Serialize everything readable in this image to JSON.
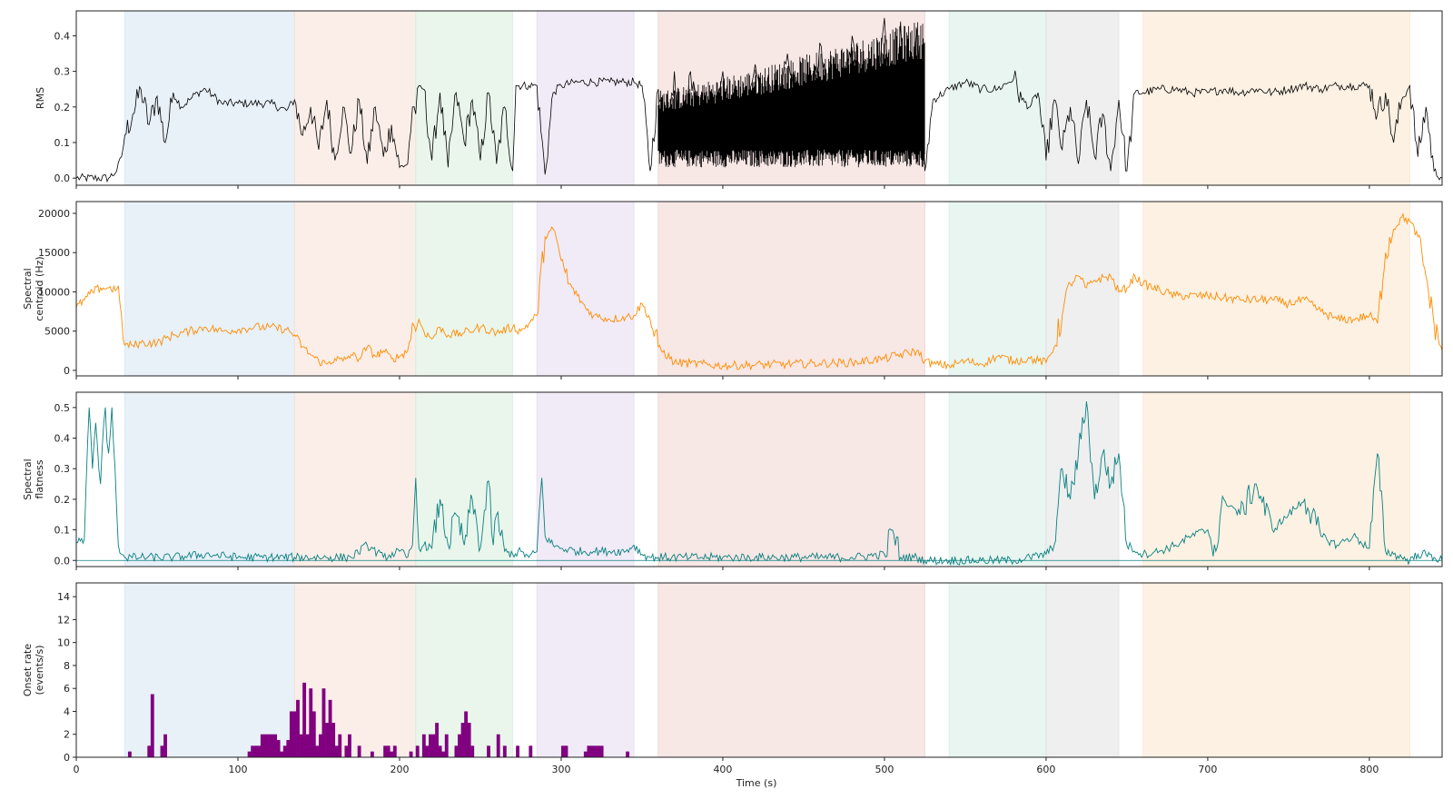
{
  "figure": {
    "title": ""
  },
  "chart_data": {
    "type": "line",
    "shared_x": true,
    "x_label": "Time (s)",
    "x_range": [
      0,
      845
    ],
    "x_ticks": [
      0,
      100,
      200,
      300,
      400,
      500,
      600,
      700,
      800
    ],
    "x_tick_labels": [
      "0",
      "100",
      "200",
      "300",
      "400",
      "500",
      "600",
      "700",
      "800"
    ],
    "segments": [
      {
        "start": 30,
        "end": 135,
        "color": "#d6e4f2"
      },
      {
        "start": 135,
        "end": 210,
        "color": "#f7e0d6"
      },
      {
        "start": 210,
        "end": 270,
        "color": "#d9eedd"
      },
      {
        "start": 285,
        "end": 345,
        "color": "#e6dbf0"
      },
      {
        "start": 360,
        "end": 525,
        "color": "#f0d3d0"
      },
      {
        "start": 540,
        "end": 600,
        "color": "#d5ede5"
      },
      {
        "start": 600,
        "end": 645,
        "color": "#e1e1e1"
      },
      {
        "start": 660,
        "end": 825,
        "color": "#f9e6cc"
      }
    ],
    "panels": [
      {
        "id": "rms",
        "type": "line",
        "ylabel": "RMS",
        "ylim": [
          -0.02,
          0.47
        ],
        "yticks": [
          0.0,
          0.1,
          0.2,
          0.3,
          0.4
        ],
        "ytick_labels": [
          "0.0",
          "0.1",
          "0.2",
          "0.3",
          "0.4"
        ],
        "color": "#000000",
        "x": [
          0,
          20,
          25,
          28,
          30,
          35,
          40,
          45,
          50,
          55,
          60,
          65,
          70,
          75,
          80,
          85,
          90,
          100,
          110,
          120,
          130,
          135,
          140,
          145,
          150,
          155,
          160,
          165,
          170,
          175,
          180,
          185,
          190,
          195,
          200,
          205,
          208,
          210,
          212,
          215,
          220,
          225,
          230,
          235,
          240,
          245,
          250,
          255,
          260,
          265,
          270,
          272,
          280,
          285,
          290,
          295,
          300,
          310,
          320,
          330,
          340,
          345,
          350,
          355,
          360,
          365,
          370,
          375,
          380,
          390,
          400,
          410,
          420,
          430,
          440,
          450,
          460,
          470,
          480,
          490,
          500,
          505,
          510,
          515,
          520,
          525,
          530,
          540,
          550,
          560,
          570,
          580,
          585,
          590,
          595,
          600,
          605,
          610,
          615,
          620,
          625,
          630,
          635,
          640,
          645,
          650,
          655,
          660,
          670,
          680,
          690,
          700,
          710,
          720,
          730,
          740,
          750,
          760,
          770,
          780,
          790,
          800,
          805,
          810,
          815,
          820,
          825,
          830,
          835,
          840,
          845
        ],
        "y": [
          0.0,
          0.0,
          0.02,
          0.06,
          0.12,
          0.18,
          0.25,
          0.15,
          0.23,
          0.1,
          0.24,
          0.2,
          0.22,
          0.24,
          0.25,
          0.23,
          0.21,
          0.21,
          0.21,
          0.21,
          0.19,
          0.22,
          0.12,
          0.2,
          0.08,
          0.22,
          0.05,
          0.2,
          0.07,
          0.22,
          0.04,
          0.2,
          0.06,
          0.15,
          0.03,
          0.04,
          0.2,
          0.18,
          0.26,
          0.25,
          0.05,
          0.24,
          0.03,
          0.24,
          0.1,
          0.22,
          0.05,
          0.24,
          0.04,
          0.2,
          0.02,
          0.26,
          0.26,
          0.26,
          0.01,
          0.24,
          0.26,
          0.27,
          0.27,
          0.27,
          0.27,
          0.27,
          0.26,
          0.02,
          0.25,
          0.08,
          0.3,
          0.05,
          0.3,
          0.06,
          0.3,
          0.05,
          0.32,
          0.04,
          0.35,
          0.05,
          0.38,
          0.06,
          0.4,
          0.08,
          0.45,
          0.05,
          0.44,
          0.06,
          0.42,
          0.02,
          0.22,
          0.25,
          0.27,
          0.25,
          0.25,
          0.28,
          0.22,
          0.2,
          0.24,
          0.05,
          0.22,
          0.08,
          0.2,
          0.04,
          0.22,
          0.06,
          0.18,
          0.02,
          0.22,
          0.02,
          0.24,
          0.24,
          0.25,
          0.25,
          0.24,
          0.24,
          0.25,
          0.24,
          0.25,
          0.24,
          0.25,
          0.26,
          0.25,
          0.26,
          0.26,
          0.26,
          0.18,
          0.24,
          0.1,
          0.22,
          0.26,
          0.06,
          0.2,
          0.02,
          0.0
        ],
        "highlight_x": [
          360,
          525
        ],
        "highlight_y_band": [
          0.03,
          0.45
        ]
      },
      {
        "id": "centroid",
        "type": "line",
        "ylabel": "Spectral centroid (Hz)",
        "ylabel_lines": [
          "Spectral",
          "centroid (Hz)"
        ],
        "ylim": [
          -700,
          21500
        ],
        "yticks": [
          0,
          5000,
          10000,
          15000,
          20000
        ],
        "ytick_labels": [
          "0",
          "5000",
          "10000",
          "15000",
          "20000"
        ],
        "color": "#ff8c00",
        "x": [
          0,
          5,
          10,
          15,
          20,
          25,
          28,
          30,
          35,
          40,
          50,
          60,
          70,
          80,
          90,
          100,
          110,
          120,
          130,
          135,
          140,
          145,
          150,
          155,
          160,
          165,
          170,
          175,
          180,
          185,
          190,
          195,
          200,
          205,
          208,
          210,
          212,
          215,
          220,
          225,
          230,
          240,
          250,
          260,
          270,
          275,
          280,
          285,
          290,
          295,
          298,
          300,
          305,
          310,
          315,
          320,
          330,
          340,
          345,
          350,
          355,
          360,
          370,
          380,
          400,
          420,
          440,
          460,
          480,
          500,
          520,
          525,
          530,
          540,
          550,
          560,
          570,
          580,
          590,
          600,
          605,
          610,
          615,
          620,
          625,
          630,
          640,
          645,
          650,
          655,
          660,
          680,
          700,
          720,
          740,
          750,
          760,
          770,
          780,
          790,
          800,
          805,
          810,
          815,
          820,
          825,
          830,
          835,
          840,
          845
        ],
        "y": [
          8000,
          9000,
          10000,
          10500,
          10500,
          10300,
          7000,
          3200,
          3200,
          3500,
          3500,
          4500,
          5000,
          5500,
          5000,
          5200,
          5500,
          5500,
          5200,
          4500,
          3000,
          2000,
          1200,
          800,
          1500,
          1200,
          2000,
          1500,
          3000,
          1800,
          2500,
          1500,
          1800,
          2500,
          6000,
          5000,
          6500,
          5000,
          4000,
          5500,
          4500,
          4800,
          5500,
          4800,
          5500,
          5000,
          6000,
          7000,
          17000,
          18000,
          16000,
          14000,
          11000,
          9500,
          8000,
          7000,
          6500,
          6800,
          7000,
          8500,
          6500,
          3000,
          1000,
          900,
          600,
          700,
          800,
          900,
          1000,
          1500,
          2500,
          1200,
          800,
          600,
          1200,
          800,
          1800,
          1200,
          1500,
          1000,
          3000,
          7000,
          11000,
          12000,
          10500,
          11500,
          12000,
          10000,
          10500,
          12000,
          11000,
          9500,
          9500,
          9000,
          9000,
          8500,
          9000,
          7500,
          6500,
          6500,
          7000,
          6000,
          15000,
          18000,
          19500,
          19000,
          17000,
          12000,
          6000,
          2500
        ]
      },
      {
        "id": "flatness",
        "type": "line",
        "ylabel": "Spectral flatness",
        "ylabel_lines": [
          "Spectral",
          "flatness"
        ],
        "ylim": [
          -0.02,
          0.55
        ],
        "yticks": [
          0.0,
          0.1,
          0.2,
          0.3,
          0.4,
          0.5
        ],
        "ytick_labels": [
          "0.0",
          "0.1",
          "0.2",
          "0.3",
          "0.4",
          "0.5"
        ],
        "color": "#0a8080",
        "x": [
          0,
          5,
          8,
          10,
          12,
          15,
          18,
          20,
          22,
          24,
          26,
          28,
          30,
          40,
          60,
          80,
          100,
          120,
          135,
          150,
          170,
          180,
          190,
          200,
          205,
          208,
          210,
          212,
          215,
          220,
          225,
          230,
          235,
          240,
          245,
          250,
          255,
          258,
          260,
          265,
          270,
          275,
          280,
          285,
          288,
          290,
          295,
          300,
          310,
          320,
          330,
          340,
          345,
          350,
          355,
          360,
          380,
          400,
          420,
          440,
          460,
          480,
          500,
          505,
          510,
          520,
          525,
          540,
          560,
          580,
          590,
          600,
          605,
          610,
          615,
          620,
          625,
          630,
          635,
          640,
          645,
          650,
          660,
          670,
          680,
          690,
          700,
          705,
          710,
          720,
          730,
          740,
          750,
          760,
          770,
          780,
          790,
          800,
          805,
          810,
          815,
          820,
          825,
          830,
          835,
          840,
          845
        ],
        "y": [
          0.06,
          0.07,
          0.5,
          0.3,
          0.45,
          0.25,
          0.5,
          0.35,
          0.5,
          0.3,
          0.05,
          0.02,
          0.01,
          0.01,
          0.01,
          0.02,
          0.01,
          0.01,
          0.01,
          0.01,
          0.01,
          0.05,
          0.01,
          0.03,
          0.01,
          0.05,
          0.27,
          0.04,
          0.05,
          0.04,
          0.2,
          0.05,
          0.15,
          0.05,
          0.2,
          0.04,
          0.26,
          0.05,
          0.15,
          0.03,
          0.02,
          0.03,
          0.01,
          0.03,
          0.27,
          0.08,
          0.05,
          0.04,
          0.03,
          0.03,
          0.03,
          0.03,
          0.05,
          0.02,
          0.01,
          0.01,
          0.01,
          0.01,
          0.01,
          0.01,
          0.01,
          0.01,
          0.02,
          0.1,
          0.01,
          0.01,
          0.0,
          0.0,
          0.0,
          0.0,
          0.01,
          0.02,
          0.05,
          0.3,
          0.2,
          0.35,
          0.52,
          0.2,
          0.35,
          0.25,
          0.35,
          0.05,
          0.02,
          0.03,
          0.05,
          0.08,
          0.1,
          0.03,
          0.2,
          0.15,
          0.25,
          0.1,
          0.15,
          0.2,
          0.08,
          0.05,
          0.08,
          0.04,
          0.35,
          0.03,
          0.02,
          0.01,
          0.0,
          0.02,
          0.02,
          0.01,
          0.0
        ],
        "extra_segments": [
          {
            "x0": 0,
            "x1": 845,
            "y": 0.0
          }
        ]
      },
      {
        "id": "onset",
        "type": "bar",
        "ylabel": "Onset rate (events/s)",
        "ylabel_lines": [
          "Onset rate",
          "(events/s)"
        ],
        "ylim": [
          0,
          15.2
        ],
        "yticks": [
          0,
          2,
          4,
          6,
          8,
          10,
          12,
          14
        ],
        "ytick_labels": [
          "0",
          "2",
          "4",
          "6",
          "8",
          "10",
          "12",
          "14"
        ],
        "color": "#800080",
        "bin_width": 2,
        "bin_start": 0,
        "values": [
          0,
          0,
          0,
          0,
          0,
          0,
          0,
          0,
          0,
          0,
          0,
          0,
          0,
          0,
          0,
          0,
          0.5,
          0,
          0,
          0,
          0,
          0,
          1,
          5.5,
          0,
          0,
          1,
          2,
          0,
          0,
          0,
          0,
          0,
          0,
          0,
          0,
          0,
          0,
          0,
          0,
          0,
          0,
          0,
          0,
          0,
          0,
          0,
          0,
          0,
          0,
          0,
          0,
          0,
          0.5,
          1,
          1,
          1,
          2,
          2,
          2,
          2,
          2,
          1.5,
          0.5,
          1,
          1.5,
          4,
          4,
          5,
          2,
          6.5,
          2,
          6,
          4,
          1,
          2,
          6,
          3,
          5,
          3,
          1,
          2,
          0,
          1,
          2,
          0,
          0,
          1,
          0,
          0,
          0,
          0.5,
          0,
          0,
          0,
          1,
          1,
          0.5,
          1,
          0,
          0,
          0,
          0,
          0.5,
          0,
          1,
          0,
          2,
          1,
          2,
          2,
          3,
          1,
          0.5,
          2,
          0,
          0,
          1,
          2,
          3,
          4,
          3,
          1,
          0,
          0,
          0,
          0,
          1,
          0,
          0,
          2,
          0,
          1,
          0,
          0,
          0,
          1,
          0,
          0,
          0,
          1,
          0,
          0,
          0,
          0,
          0,
          0,
          0,
          0,
          0,
          1,
          1,
          0,
          0,
          0,
          0,
          0,
          0.5,
          1,
          1,
          1,
          1,
          1,
          0,
          0,
          0,
          0,
          0,
          0,
          0,
          0.5
        ],
        "values_note": ""
      }
    ]
  }
}
